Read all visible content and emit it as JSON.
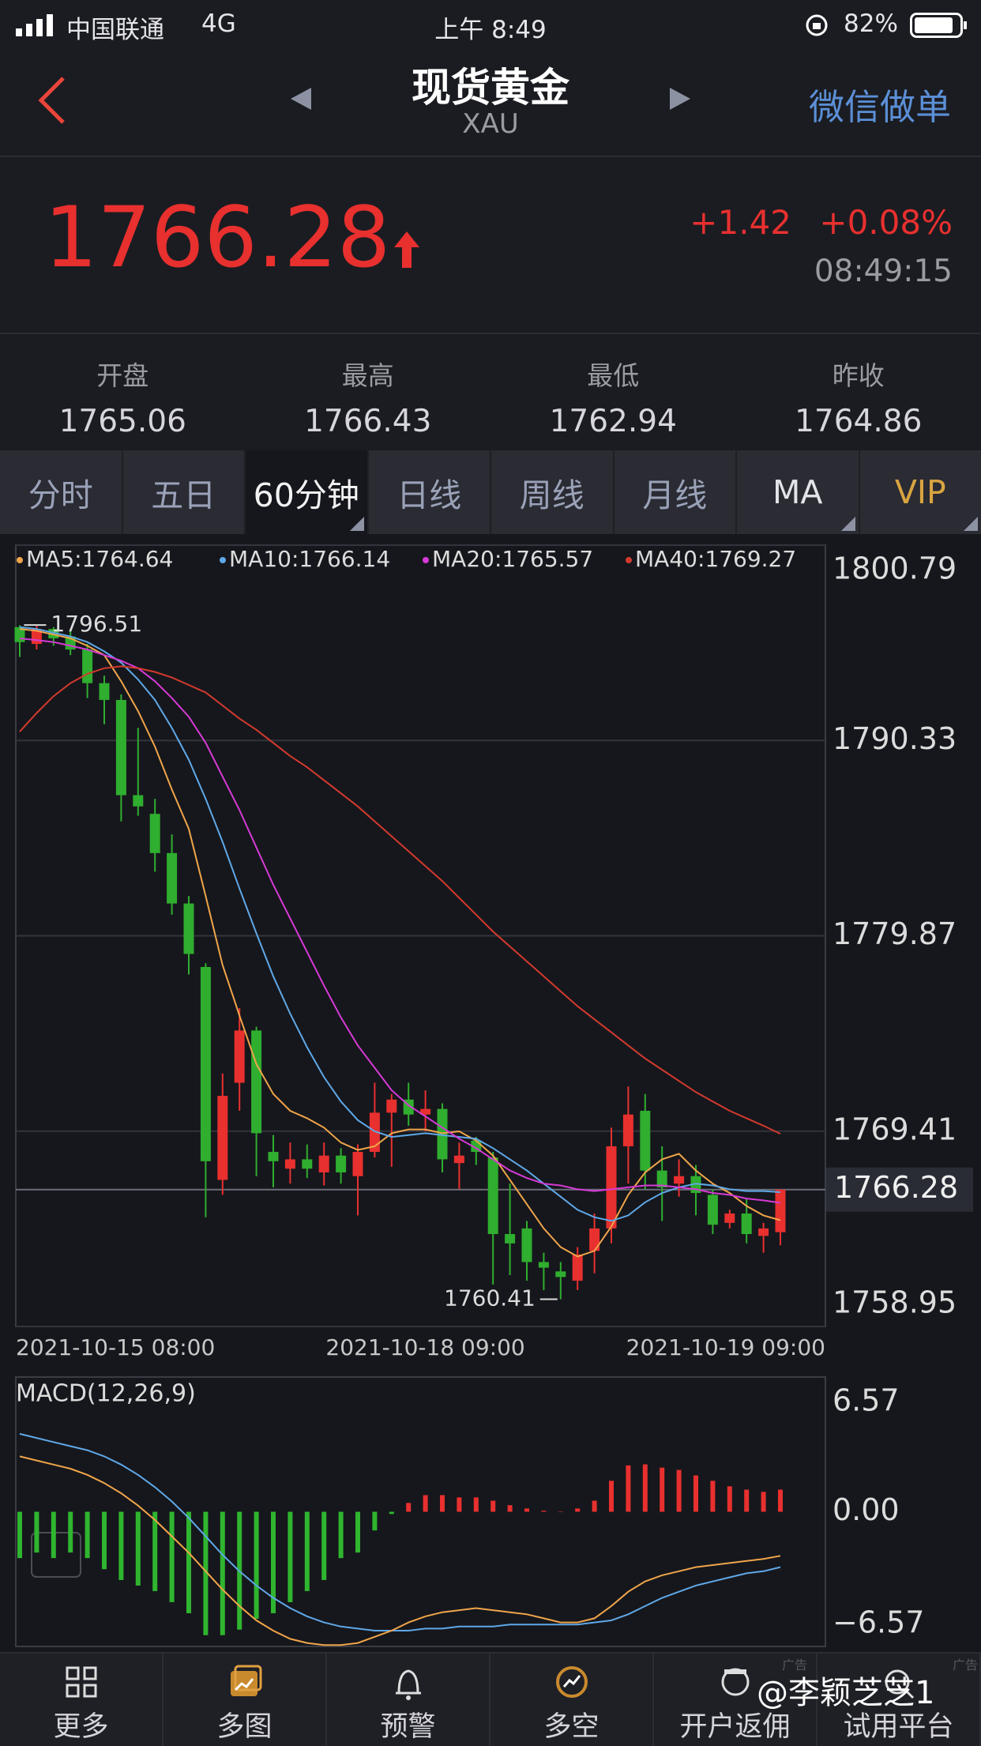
{
  "status_bar": {
    "carrier": "中国联通",
    "network": "4G",
    "time": "上午 8:49",
    "battery": "82%"
  },
  "header": {
    "title": "现货黄金",
    "subtitle": "XAU",
    "action": "微信做单"
  },
  "quote": {
    "price": 1766.28,
    "change": "+1.42",
    "change_pct": "+0.08%",
    "time": "08:49:15"
  },
  "stats": [
    {
      "label": "开盘",
      "value": "1765.06"
    },
    {
      "label": "最高",
      "value": "1766.43"
    },
    {
      "label": "最低",
      "value": "1762.94"
    },
    {
      "label": "昨收",
      "value": "1764.86"
    }
  ],
  "tabs": [
    "分时",
    "五日",
    "60分钟",
    "日线",
    "周线",
    "月线",
    "MA",
    "VIP"
  ],
  "chart_data": [
    {
      "type": "candlestick",
      "categories": [
        "2021-10-15 08:00",
        null,
        null,
        null,
        null,
        null,
        null,
        null,
        null,
        null,
        null,
        null,
        null,
        null,
        null,
        null,
        null,
        null,
        null,
        null,
        null,
        null,
        null,
        null,
        "2021-10-18 09:00",
        null,
        null,
        null,
        null,
        null,
        null,
        null,
        null,
        null,
        null,
        null,
        null,
        null,
        null,
        null,
        null,
        null,
        null,
        null,
        null,
        "2021-10-19 09:00"
      ],
      "open": [
        1796.4,
        1795.5,
        1796.3,
        1795.9,
        1795.2,
        1793.4,
        1792.5,
        1787.4,
        1786.4,
        1784.3,
        1781.6,
        1778.2,
        1766.8,
        1772.0,
        1774.8,
        1768.3,
        1767.4,
        1767.9,
        1767.2,
        1768.1,
        1767.0,
        1768.3,
        1770.4,
        1771.1,
        1770.3,
        1770.6,
        1767.7,
        1768.9,
        1768.0,
        1763.9,
        1764.2,
        1762.4,
        1761.9,
        1761.4,
        1763.0,
        1764.2,
        1768.6,
        1770.5,
        1767.3,
        1766.6,
        1767.0,
        1766.0,
        1764.5,
        1765.0,
        1763.8,
        1764.0
      ],
      "high": [
        1796.5,
        1796.51,
        1796.4,
        1796.2,
        1795.5,
        1793.8,
        1792.8,
        1791.0,
        1787.2,
        1785.3,
        1782.0,
        1778.4,
        1772.5,
        1776.0,
        1775.0,
        1769.2,
        1768.8,
        1768.7,
        1768.8,
        1768.5,
        1768.7,
        1772.0,
        1771.4,
        1772.0,
        1771.6,
        1770.9,
        1768.8,
        1769.1,
        1768.3,
        1766.6,
        1764.6,
        1762.9,
        1762.4,
        1763.2,
        1765.0,
        1769.6,
        1771.8,
        1771.4,
        1768.6,
        1767.9,
        1767.6,
        1766.3,
        1765.2,
        1765.8,
        1764.5,
        1766.3
      ],
      "low": [
        1794.8,
        1795.2,
        1795.4,
        1794.9,
        1792.6,
        1791.2,
        1786.0,
        1786.3,
        1783.3,
        1781.0,
        1777.8,
        1764.8,
        1766.0,
        1770.5,
        1767.0,
        1766.4,
        1766.6,
        1766.9,
        1766.5,
        1766.6,
        1764.9,
        1768.0,
        1767.5,
        1769.7,
        1769.4,
        1767.2,
        1766.3,
        1767.6,
        1761.2,
        1761.7,
        1761.4,
        1760.9,
        1760.41,
        1760.9,
        1761.8,
        1763.4,
        1766.6,
        1766.3,
        1764.6,
        1765.9,
        1764.9,
        1763.9,
        1764.2,
        1763.4,
        1762.9,
        1763.3
      ],
      "close": [
        1795.6,
        1796.3,
        1795.8,
        1795.2,
        1793.4,
        1792.5,
        1787.4,
        1786.8,
        1784.3,
        1781.6,
        1778.9,
        1767.8,
        1771.3,
        1774.8,
        1769.3,
        1767.8,
        1767.9,
        1767.4,
        1768.1,
        1767.2,
        1768.3,
        1770.4,
        1771.1,
        1770.3,
        1770.6,
        1767.9,
        1768.1,
        1768.3,
        1763.9,
        1763.4,
        1762.4,
        1762.1,
        1761.6,
        1762.8,
        1764.2,
        1768.6,
        1770.3,
        1767.3,
        1766.4,
        1767.0,
        1766.1,
        1764.4,
        1765.0,
        1763.9,
        1764.2,
        1766.28
      ],
      "up_color": "#e8302f",
      "down_color": "#2fae2f",
      "series": [
        {
          "name": "MA5:1764.64",
          "color": "#f0a54a",
          "values": [
            1796.3,
            1796.2,
            1796.0,
            1795.8,
            1795.4,
            1794.9,
            1793.5,
            1791.9,
            1790.0,
            1787.7,
            1785.6,
            1782.0,
            1778.3,
            1775.6,
            1773.0,
            1771.4,
            1770.5,
            1770.1,
            1769.6,
            1768.8,
            1768.4,
            1768.6,
            1769.3,
            1769.5,
            1769.5,
            1769.3,
            1769.4,
            1768.9,
            1768.1,
            1766.8,
            1765.5,
            1764.2,
            1763.2,
            1762.7,
            1763.0,
            1764.3,
            1766.0,
            1767.2,
            1767.9,
            1768.2,
            1767.3,
            1766.6,
            1766.1,
            1765.4,
            1764.9,
            1764.64
          ]
        },
        {
          "name": "MA10:1766.14",
          "color": "#5fa8e8",
          "values": [
            1796.4,
            1796.3,
            1796.1,
            1795.9,
            1795.6,
            1795.1,
            1794.5,
            1793.6,
            1792.5,
            1791.0,
            1789.3,
            1787.2,
            1784.9,
            1782.4,
            1780.0,
            1777.7,
            1775.7,
            1773.9,
            1772.3,
            1771.0,
            1770.0,
            1769.4,
            1769.1,
            1769.2,
            1769.3,
            1769.2,
            1769.1,
            1769.0,
            1768.5,
            1767.9,
            1767.3,
            1766.6,
            1765.9,
            1765.2,
            1764.8,
            1764.6,
            1764.9,
            1765.6,
            1766.1,
            1766.4,
            1766.6,
            1766.5,
            1766.3,
            1766.2,
            1766.2,
            1766.14
          ]
        },
        {
          "name": "MA20:1765.57",
          "color": "#d63ad6",
          "values": [
            1795.8,
            1795.7,
            1795.6,
            1795.4,
            1795.2,
            1794.9,
            1794.6,
            1794.2,
            1793.5,
            1792.6,
            1791.6,
            1790.2,
            1788.4,
            1786.6,
            1784.6,
            1782.6,
            1780.8,
            1779.0,
            1777.2,
            1775.5,
            1774.0,
            1772.8,
            1771.6,
            1770.8,
            1770.2,
            1769.6,
            1769.0,
            1768.5,
            1767.9,
            1767.3,
            1766.9,
            1766.6,
            1766.5,
            1766.3,
            1766.2,
            1766.3,
            1766.4,
            1766.5,
            1766.5,
            1766.4,
            1766.3,
            1766.1,
            1766.0,
            1765.8,
            1765.7,
            1765.57
          ]
        },
        {
          "name": "MA40:1769.27",
          "color": "#d23a2e",
          "values": [
            1790.8,
            1791.8,
            1792.7,
            1793.4,
            1793.9,
            1794.2,
            1794.3,
            1794.2,
            1794.0,
            1793.7,
            1793.3,
            1792.9,
            1792.2,
            1791.5,
            1790.9,
            1790.2,
            1789.5,
            1788.9,
            1788.2,
            1787.5,
            1786.8,
            1786.0,
            1785.2,
            1784.4,
            1783.6,
            1782.8,
            1781.9,
            1781.0,
            1780.1,
            1779.3,
            1778.5,
            1777.7,
            1776.9,
            1776.1,
            1775.4,
            1774.7,
            1774.0,
            1773.3,
            1772.7,
            1772.1,
            1771.5,
            1771.0,
            1770.5,
            1770.1,
            1769.7,
            1769.27
          ]
        }
      ],
      "ylim": [
        1758.95,
        1800.79
      ],
      "yticks": [
        1800.79,
        1790.33,
        1779.87,
        1769.41,
        1758.95
      ],
      "grid": true,
      "max_marker": 1796.51,
      "min_marker": 1760.41
    },
    {
      "type": "macd",
      "title": "MACD(12,26,9)",
      "values": [
        -2.26,
        -1.99,
        -2.26,
        -1.99,
        -2.26,
        -2.8,
        -3.33,
        -3.6,
        -3.87,
        -4.41,
        -4.95,
        -6.02,
        -6.02,
        -5.75,
        -5.22,
        -4.95,
        -4.41,
        -3.87,
        -3.33,
        -2.26,
        -1.99,
        -0.91,
        -0.11,
        0.43,
        0.81,
        0.81,
        0.7,
        0.7,
        0.54,
        0.32,
        0.16,
        0.05,
        0,
        0.16,
        0.54,
        1.51,
        2.26,
        2.31,
        2.15,
        2.04,
        1.77,
        1.51,
        1.24,
        1.08,
        0.97,
        1.08
      ],
      "up_color": "#e8302f",
      "down_color": "#2fb52f",
      "series": [
        {
          "color": "#5fa8e8",
          "values": [
            3.8,
            3.6,
            3.4,
            3.2,
            3.0,
            2.7,
            2.3,
            1.8,
            1.2,
            0.5,
            -0.3,
            -1.2,
            -2.1,
            -2.9,
            -3.6,
            -4.2,
            -4.7,
            -5.1,
            -5.4,
            -5.6,
            -5.7,
            -5.8,
            -5.8,
            -5.8,
            -5.7,
            -5.7,
            -5.6,
            -5.6,
            -5.6,
            -5.5,
            -5.5,
            -5.5,
            -5.5,
            -5.5,
            -5.4,
            -5.3,
            -5.0,
            -4.6,
            -4.2,
            -3.9,
            -3.6,
            -3.4,
            -3.2,
            -3.0,
            -2.9,
            -2.7
          ]
        },
        {
          "color": "#f0a54a",
          "values": [
            2.7,
            2.5,
            2.3,
            2.1,
            1.8,
            1.4,
            0.9,
            0.3,
            -0.4,
            -1.2,
            -2.0,
            -2.9,
            -3.8,
            -4.6,
            -5.3,
            -5.8,
            -6.2,
            -6.4,
            -6.5,
            -6.5,
            -6.4,
            -6.1,
            -5.8,
            -5.4,
            -5.1,
            -4.9,
            -4.8,
            -4.7,
            -4.8,
            -4.9,
            -5.0,
            -5.2,
            -5.4,
            -5.4,
            -5.2,
            -4.6,
            -3.9,
            -3.4,
            -3.1,
            -2.9,
            -2.7,
            -2.6,
            -2.5,
            -2.4,
            -2.3,
            -2.15
          ]
        }
      ],
      "ylim": [
        -6.57,
        6.57
      ],
      "yticks": [
        6.57,
        {
          "value": 0,
          "label": "0.00"
        },
        {
          "value": -6.57,
          "label": "−6.57"
        }
      ]
    }
  ],
  "nav": [
    "更多",
    "多图",
    "预警",
    "多空",
    "开户返佣",
    "试用平台"
  ],
  "watermark": "@李颖芝芝1",
  "ad_labels": [
    "广告",
    "广告"
  ]
}
